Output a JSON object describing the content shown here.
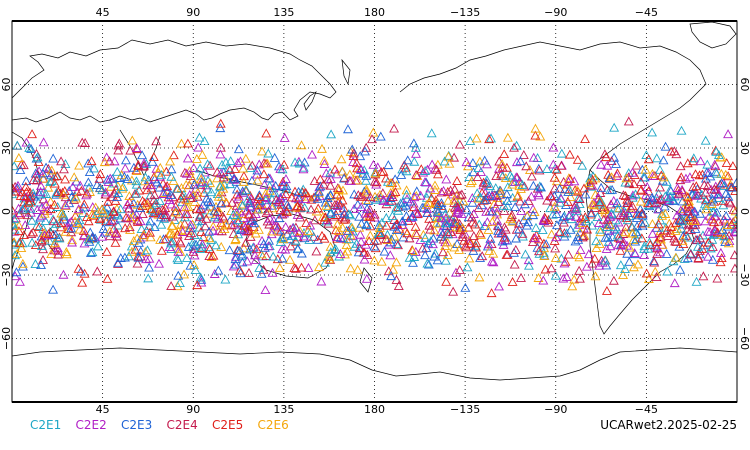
{
  "map": {
    "projection": "cylindrical-equidistant",
    "center_longitude": 180,
    "lon_range": [
      0,
      360
    ],
    "lat_range": [
      -90,
      90
    ],
    "marker_shape": "triangle-outline",
    "marker_lat_band": [
      -45,
      45
    ],
    "top_ticks": [
      {
        "lon": 45,
        "label": "45"
      },
      {
        "lon": 90,
        "label": "90"
      },
      {
        "lon": 135,
        "label": "135"
      },
      {
        "lon": 180,
        "label": "180"
      },
      {
        "lon": 225,
        "label": "−135"
      },
      {
        "lon": 270,
        "label": "−90"
      },
      {
        "lon": 315,
        "label": "−45"
      }
    ],
    "bottom_ticks": [
      {
        "lon": 45,
        "label": "45"
      },
      {
        "lon": 90,
        "label": "90"
      },
      {
        "lon": 135,
        "label": "135"
      },
      {
        "lon": 180,
        "label": "180"
      },
      {
        "lon": 225,
        "label": "−135"
      },
      {
        "lon": 270,
        "label": "−90"
      },
      {
        "lon": 315,
        "label": "−45"
      }
    ],
    "lat_ticks": [
      {
        "lat": 60,
        "label": "60"
      },
      {
        "lat": 30,
        "label": "30"
      },
      {
        "lat": 0,
        "label": "0"
      },
      {
        "lat": -30,
        "label": "−30"
      },
      {
        "lat": -60,
        "label": "−60"
      }
    ],
    "grid": true
  },
  "legend": {
    "items": [
      {
        "label": "C2E1",
        "color": "#1fa7c6"
      },
      {
        "label": "C2E2",
        "color": "#b11fc6"
      },
      {
        "label": "C2E3",
        "color": "#1f63d6"
      },
      {
        "label": "C2E4",
        "color": "#c41b4e"
      },
      {
        "label": "C2E5",
        "color": "#e0201a"
      },
      {
        "label": "C2E6",
        "color": "#f4a60a"
      }
    ]
  },
  "source": {
    "label": "UCARwet2.2025-02-25"
  }
}
